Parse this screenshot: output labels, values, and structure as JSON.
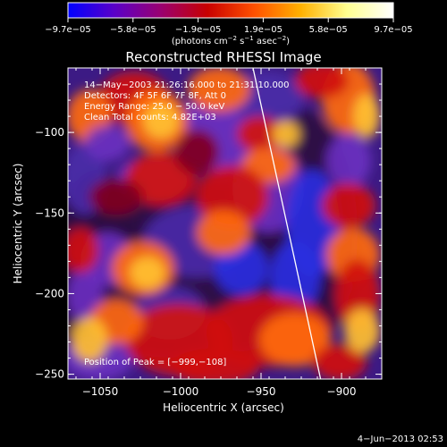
{
  "chart_data": {
    "type": "heatmap",
    "title": "Reconstructed RHESSI Image",
    "xlabel": "Heliocentric X (arcsec)",
    "ylabel": "Heliocentric Y (arcsec)",
    "xlim": [
      -1070,
      -875
    ],
    "ylim": [
      -253,
      -60
    ],
    "x_ticks": [
      -1050,
      -1000,
      -950,
      -900
    ],
    "y_ticks": [
      -100,
      -150,
      -200,
      -250
    ],
    "x_tick_labels": [
      "−1050",
      "−1000",
      "−950",
      "−900"
    ],
    "y_tick_labels": [
      "−100",
      "−150",
      "−200",
      "−250"
    ],
    "colorbar": {
      "range": [
        -9.7e-05,
        9.7e-05
      ],
      "tick_labels": [
        "−9.7e−05",
        "−5.8e−05",
        "−1.9e−05",
        "1.9e−05",
        "5.8e−05",
        "9.7e−05"
      ],
      "unit_parts": [
        "(photons cm",
        "−2",
        " s",
        "−1",
        " asec",
        "−2",
        ")"
      ],
      "colors": [
        "#0000ff",
        "#5a00c8",
        "#9a0070",
        "#c80000",
        "#ff5000",
        "#ffb000",
        "#ffff90",
        "#ffffff"
      ]
    },
    "info_lines": [
      "14−May−2003 21:26:16.000 to 21:31:10.000",
      "Detectors: 4F 5F 6F 7F 8F, Att 0",
      "Energy Range: 25.0 − 50.0 keV",
      "Clean     Total counts: 4.82E+03"
    ],
    "peak_label": "Position of Peak = [−999,−108]",
    "limb_line": {
      "x1": -955,
      "y1": -60,
      "x2": -913,
      "y2": -253
    },
    "image_colors": {
      "limb": "#ffffff",
      "background": "#3c1a84"
    }
  },
  "footer": {
    "date": "4−Jun−2013 02:53"
  }
}
